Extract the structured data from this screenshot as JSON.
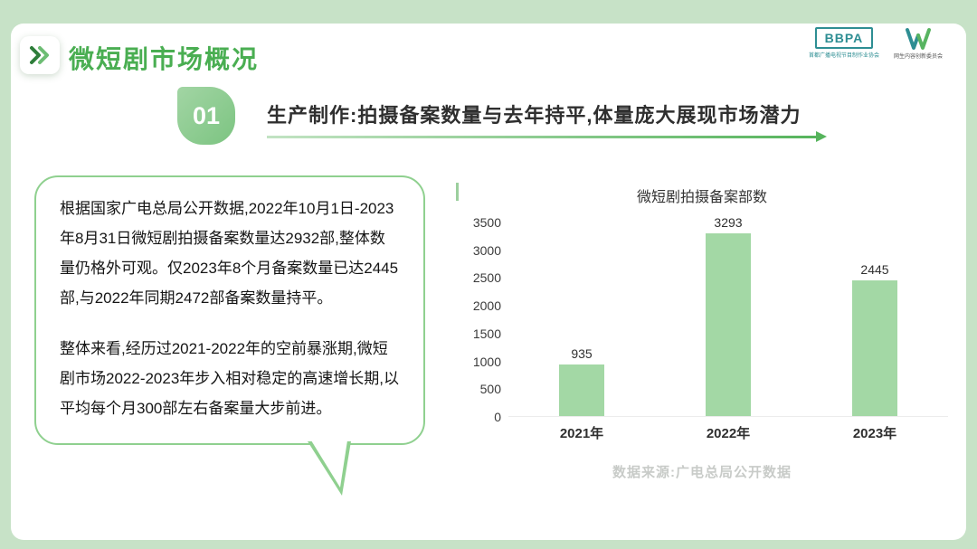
{
  "header": {
    "title": "微短剧市场概况",
    "logos": {
      "bbpa_text": "BBPA",
      "bbpa_subtext": "首都广播电视节目制作业协会",
      "committee_subtext": "网生内容创新委员会"
    }
  },
  "section": {
    "number": "01",
    "heading": "生产制作:拍摄备案数量与去年持平,体量庞大展现市场潜力"
  },
  "bubble": {
    "paragraph1": "根据国家广电总局公开数据,2022年10月1日-2023年8月31日微短剧拍摄备案数量达2932部,整体数量仍格外可观。仅2023年8个月备案数量已达2445部,与2022年同期2472部备案数量持平。",
    "paragraph2": "整体来看,经历过2021-2022年的空前暴涨期,微短剧市场2022-2023年步入相对稳定的高速增长期,以平均每个月300部左右备案量大步前进。"
  },
  "chart_data": {
    "type": "bar",
    "title": "微短剧拍摄备案部数",
    "categories": [
      "2021年",
      "2022年",
      "2023年"
    ],
    "values": [
      935,
      3293,
      2445
    ],
    "yticks": [
      0,
      500,
      1000,
      1500,
      2000,
      2500,
      3000,
      3500
    ],
    "ylim": [
      0,
      3500
    ],
    "grid": false,
    "legend": false,
    "bar_color": "#a3d8a5",
    "source": "数据来源:广电总局公开数据"
  },
  "colors": {
    "background_green": "#c7e2c7",
    "title_green": "#4aae52",
    "badge_green": "#8ecb90",
    "bar_green": "#a3d8a5",
    "bubble_border_green": "#8fd08f",
    "logo_teal": "#2e8e93",
    "source_gray": "#c8cbc8"
  }
}
